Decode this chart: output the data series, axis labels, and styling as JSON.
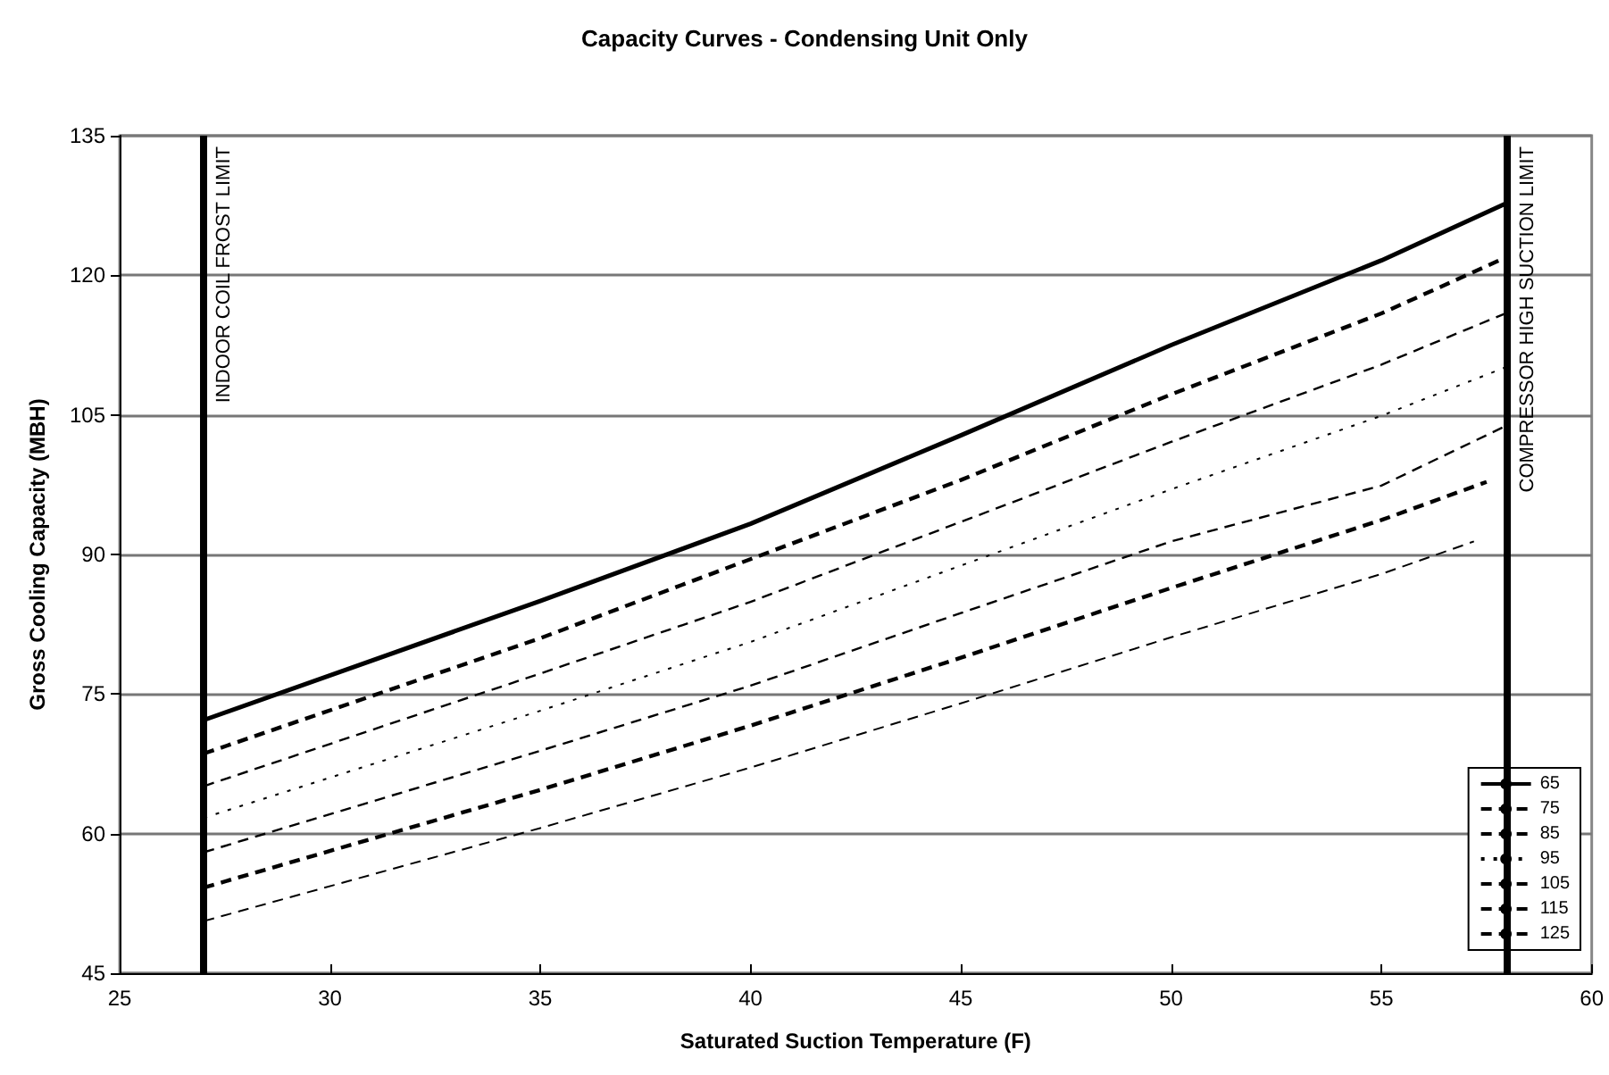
{
  "chart_data": {
    "type": "line",
    "title": "Capacity Curves - Condensing Unit Only",
    "xlabel": "Saturated Suction Temperature (F)",
    "ylabel": "Gross Cooling Capacity (MBH)",
    "x": [
      27,
      35,
      40,
      45,
      50,
      55,
      58
    ],
    "series": [
      {
        "name": "65",
        "color": "#000000",
        "line_style": "solid",
        "values": [
          72.2,
          85,
          93.3,
          102.8,
          112.5,
          121.6,
          127.8
        ]
      },
      {
        "name": "75",
        "color": "#000000",
        "line_style": "dashed",
        "values": [
          68.6,
          81.0,
          89.5,
          98.0,
          107.2,
          115.9,
          122
        ]
      },
      {
        "name": "85",
        "color": "#000000",
        "line_style": "dashed",
        "values": [
          65.1,
          77.2,
          84.9,
          93.5,
          102.1,
          110.4,
          116
        ]
      },
      {
        "name": "95",
        "color": "#000000",
        "line_style": "dotted",
        "values": [
          61.7,
          73.2,
          80.6,
          88.8,
          97.0,
          104.9,
          110.2
        ]
      },
      {
        "name": "105",
        "color": "#000000",
        "line_style": "dashed",
        "values": [
          58,
          68.9,
          75.9,
          83.7,
          91.4,
          97.4,
          103.9
        ]
      },
      {
        "name": "115",
        "color": "#000000",
        "line_style": "dashed",
        "x": [
          27,
          35,
          40,
          45,
          50,
          55,
          57.5
        ],
        "values": [
          54.2,
          64.7,
          71.6,
          78.9,
          86.4,
          93.7,
          97.8
        ]
      },
      {
        "name": "125",
        "color": "#000000",
        "line_style": "dashed",
        "x": [
          27,
          35,
          40,
          45,
          50,
          55,
          57.2
        ],
        "values": [
          50.6,
          60.6,
          67.1,
          74.0,
          81.1,
          87.9,
          91.4
        ]
      }
    ],
    "ref_lines": [
      {
        "axis": "x",
        "value": 27,
        "label": "INDOOR COIL FROST LIMIT",
        "color": "#000000"
      },
      {
        "axis": "x",
        "value": 58,
        "label": "COMPRESSOR HIGH SUCTION LIMIT",
        "color": "#000000"
      }
    ],
    "xlim": [
      25,
      60
    ],
    "xticks": [
      25,
      30,
      35,
      40,
      45,
      50,
      55,
      60
    ],
    "ylim": [
      45,
      135
    ],
    "yticks": [
      45,
      60,
      75,
      90,
      105,
      120,
      135
    ],
    "grid": "y",
    "legend": "bottom right",
    "marker": "none"
  }
}
